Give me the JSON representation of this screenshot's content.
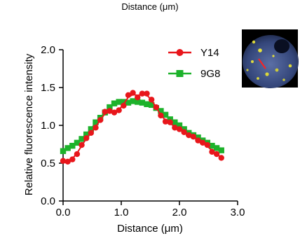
{
  "title": "Distance (μm)",
  "chart_data": {
    "type": "line",
    "title": "Distance (μm)",
    "xlabel": "Distance (μm)",
    "ylabel": "Relative fluorescence intensity",
    "xlim": [
      0,
      3
    ],
    "ylim": [
      0,
      2
    ],
    "x_ticks": [
      0,
      1,
      2,
      3
    ],
    "x_tick_labels": [
      "0.0",
      "1.0",
      "2.0",
      "3.0"
    ],
    "y_ticks": [
      0,
      0.5,
      1,
      1.5,
      2
    ],
    "y_tick_labels": [
      "0.0",
      "0.5",
      "1.0",
      "1.5",
      "2.0"
    ],
    "grid": false,
    "legend_position": "top-right",
    "series": [
      {
        "name": "Y14",
        "color": "#e8161b",
        "marker": "circle",
        "x": [
          0.0,
          0.08,
          0.16,
          0.24,
          0.32,
          0.4,
          0.48,
          0.56,
          0.64,
          0.72,
          0.8,
          0.88,
          0.96,
          1.04,
          1.12,
          1.2,
          1.28,
          1.36,
          1.44,
          1.52,
          1.6,
          1.68,
          1.76,
          1.84,
          1.92,
          2.0,
          2.08,
          2.16,
          2.24,
          2.32,
          2.4,
          2.48,
          2.56,
          2.64,
          2.72
        ],
        "y": [
          0.53,
          0.52,
          0.55,
          0.62,
          0.74,
          0.83,
          0.9,
          0.97,
          1.07,
          1.18,
          1.19,
          1.17,
          1.2,
          1.26,
          1.4,
          1.43,
          1.37,
          1.42,
          1.42,
          1.34,
          1.24,
          1.13,
          1.05,
          1.04,
          0.97,
          0.95,
          0.91,
          0.87,
          0.85,
          0.8,
          0.77,
          0.74,
          0.65,
          0.62,
          0.57
        ]
      },
      {
        "name": "9G8",
        "color": "#1db22b",
        "marker": "square",
        "x": [
          0.0,
          0.08,
          0.16,
          0.24,
          0.32,
          0.4,
          0.48,
          0.56,
          0.64,
          0.72,
          0.8,
          0.88,
          0.96,
          1.04,
          1.12,
          1.2,
          1.28,
          1.36,
          1.44,
          1.52,
          1.6,
          1.68,
          1.76,
          1.84,
          1.92,
          2.0,
          2.08,
          2.16,
          2.24,
          2.32,
          2.4,
          2.48,
          2.56,
          2.64,
          2.72
        ],
        "y": [
          0.66,
          0.7,
          0.73,
          0.77,
          0.82,
          0.88,
          0.95,
          1.04,
          1.1,
          1.17,
          1.24,
          1.29,
          1.31,
          1.31,
          1.3,
          1.32,
          1.31,
          1.3,
          1.28,
          1.27,
          1.23,
          1.19,
          1.14,
          1.08,
          1.04,
          1.0,
          0.95,
          0.9,
          0.87,
          0.84,
          0.8,
          0.77,
          0.73,
          0.7,
          0.67
        ]
      }
    ]
  }
}
